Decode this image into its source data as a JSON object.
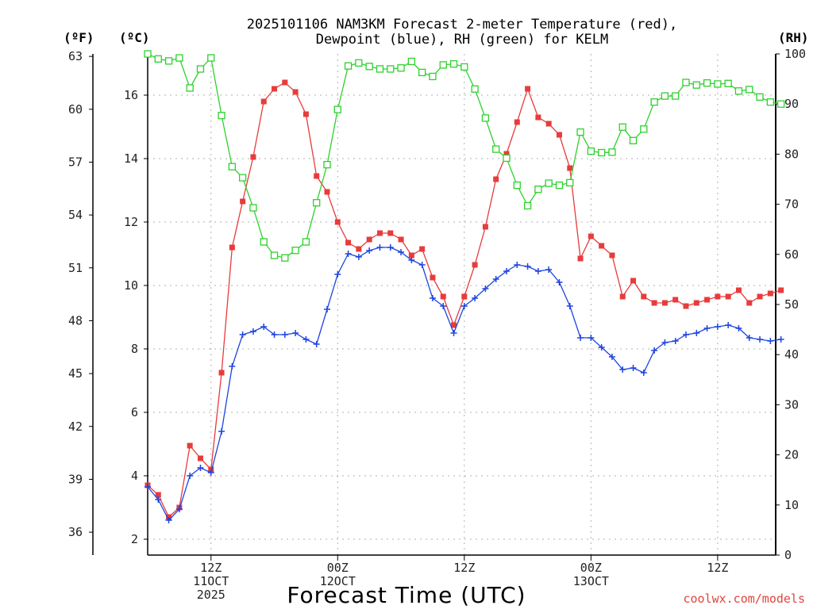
{
  "chart_data": {
    "type": "line",
    "title_line1": "2025101106 NAM3KM Forecast 2-meter Temperature (red),",
    "title_line2": "Dewpoint (blue), RH (green) for KELM",
    "xlabel": "Forecast Time (UTC)",
    "units": {
      "fahrenheit": "(ºF)",
      "celsius": "(ºC)",
      "rh": "(RH)"
    },
    "credit": "coolwx.com/models",
    "x_ticks": [
      {
        "hour": 6,
        "lines": [
          "12Z",
          "11OCT",
          "2025"
        ]
      },
      {
        "hour": 18,
        "lines": [
          "00Z",
          "12OCT"
        ]
      },
      {
        "hour": 30,
        "lines": [
          "12Z"
        ]
      },
      {
        "hour": 42,
        "lines": [
          "00Z",
          "13OCT"
        ]
      },
      {
        "hour": 54,
        "lines": [
          "12Z"
        ]
      }
    ],
    "xlim": [
      0,
      59.5
    ],
    "ylim_c": [
      1.5,
      17.3
    ],
    "ylim_rh": [
      0,
      100
    ],
    "y_ticks_f": [
      "36",
      "39",
      "42",
      "45",
      "48",
      "51",
      "54",
      "57",
      "60",
      "63"
    ],
    "y_ticks_c": [
      "2",
      "4",
      "6",
      "8",
      "10",
      "12",
      "14",
      "16"
    ],
    "y_ticks_rh": [
      "0",
      "10",
      "20",
      "30",
      "40",
      "50",
      "60",
      "70",
      "80",
      "90",
      "100"
    ],
    "x_hours": [
      0,
      1,
      2,
      3,
      4,
      5,
      6,
      7,
      8,
      9,
      10,
      11,
      12,
      13,
      14,
      15,
      16,
      17,
      18,
      19,
      20,
      21,
      22,
      23,
      24,
      25,
      26,
      27,
      28,
      29,
      30,
      31,
      32,
      33,
      34,
      35,
      36,
      37,
      38,
      39,
      40,
      41,
      42,
      43,
      44,
      45,
      46,
      47,
      48,
      49,
      50,
      51,
      52,
      53,
      54,
      55,
      56,
      57,
      58,
      59,
      60
    ],
    "series": [
      {
        "name": "Temperature",
        "color": "#e83b3b",
        "marker": "filled-square",
        "values": [
          3.7,
          3.4,
          2.7,
          3.0,
          4.95,
          4.55,
          4.2,
          7.25,
          11.2,
          12.65,
          14.05,
          15.8,
          16.2,
          16.4,
          16.1,
          15.4,
          13.45,
          12.95,
          12.0,
          11.35,
          11.15,
          11.45,
          11.65,
          11.65,
          11.45,
          10.95,
          11.15,
          10.25,
          9.65,
          8.75,
          9.65,
          10.65,
          11.85,
          13.35,
          14.15,
          15.15,
          16.2,
          15.3,
          15.1,
          14.75,
          13.7,
          10.85,
          11.55,
          11.25,
          10.95,
          9.65,
          10.15,
          9.65,
          9.45,
          9.45,
          9.55,
          9.35,
          9.45,
          9.55,
          9.65,
          9.65,
          9.85,
          9.45,
          9.65,
          9.75,
          9.85
        ]
      },
      {
        "name": "Dewpoint",
        "color": "#1e44e0",
        "marker": "plus",
        "values": [
          3.65,
          3.25,
          2.6,
          2.95,
          4.0,
          4.25,
          4.1,
          5.4,
          7.45,
          8.45,
          8.55,
          8.7,
          8.45,
          8.45,
          8.5,
          8.3,
          8.15,
          9.25,
          10.35,
          11.0,
          10.9,
          11.1,
          11.2,
          11.2,
          11.05,
          10.8,
          10.65,
          9.6,
          9.35,
          8.5,
          9.35,
          9.6,
          9.9,
          10.2,
          10.45,
          10.65,
          10.6,
          10.45,
          10.5,
          10.1,
          9.35,
          8.35,
          8.35,
          8.05,
          7.75,
          7.35,
          7.4,
          7.25,
          7.95,
          8.2,
          8.25,
          8.45,
          8.5,
          8.65,
          8.7,
          8.75,
          8.65,
          8.35,
          8.3,
          8.25,
          8.3
        ]
      },
      {
        "name": "RH",
        "color": "#2ed12e",
        "marker": "open-square",
        "values": [
          100,
          99,
          98.6,
          99.2,
          93.2,
          97,
          99.2,
          87.7,
          77.5,
          75.3,
          69.3,
          62.5,
          59.8,
          59.3,
          60.8,
          62.5,
          70.3,
          77.9,
          88.9,
          97.6,
          98.2,
          97.5,
          97,
          97,
          97.2,
          98.5,
          96.3,
          95.5,
          97.8,
          98,
          97.4,
          93,
          87.2,
          81,
          79.2,
          73.8,
          69.7,
          73,
          74.2,
          73.8,
          74.3,
          84.4,
          80.6,
          80.3,
          80.4,
          85.4,
          82.7,
          85,
          90.4,
          91.6,
          91.6,
          94.3,
          93.8,
          94.2,
          94,
          94.1,
          92.6,
          92.9,
          91.4,
          90.4,
          90.0
        ]
      }
    ]
  }
}
